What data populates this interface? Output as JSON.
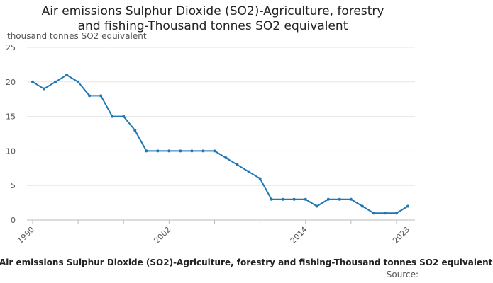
{
  "chart_data": {
    "type": "line",
    "title_lines": [
      "Air emissions Sulphur Dioxide (SO2)-Agriculture, forestry",
      "and fishing-Thousand tonnes SO2 equivalent"
    ],
    "ylabel": "thousand tonnes SO2 equivalent",
    "x": [
      1990,
      1991,
      1992,
      1993,
      1994,
      1995,
      1996,
      1997,
      1998,
      1999,
      2000,
      2001,
      2002,
      2003,
      2004,
      2005,
      2006,
      2007,
      2008,
      2009,
      2010,
      2011,
      2012,
      2013,
      2014,
      2015,
      2016,
      2017,
      2018,
      2019,
      2020,
      2021,
      2022,
      2023
    ],
    "series": [
      {
        "name": "Air emissions Sulphur Dioxide (SO2)-Agriculture, forestry and fishing-Thousand tonnes SO2 equivalent",
        "values": [
          20,
          19,
          20,
          21,
          20,
          18,
          18,
          15,
          15,
          13,
          10,
          10,
          10,
          10,
          10,
          10,
          10,
          9,
          8,
          7,
          6,
          3,
          3,
          3,
          3,
          2,
          3,
          3,
          3,
          2,
          1,
          1,
          1,
          2
        ],
        "color": "#1f77b4"
      }
    ],
    "ylim": [
      0,
      25
    ],
    "yticks": [
      0,
      5,
      10,
      15,
      20,
      25
    ],
    "xlim": [
      1990,
      2023
    ],
    "xtick_labels": [
      "1990",
      "2002",
      "2014",
      "2023"
    ],
    "legend_text": "Air emissions Sulphur Dioxide (SO2)-Agriculture, forestry and fishing-Thousand tonnes SO2 equivalent",
    "source_text": "Source:"
  }
}
